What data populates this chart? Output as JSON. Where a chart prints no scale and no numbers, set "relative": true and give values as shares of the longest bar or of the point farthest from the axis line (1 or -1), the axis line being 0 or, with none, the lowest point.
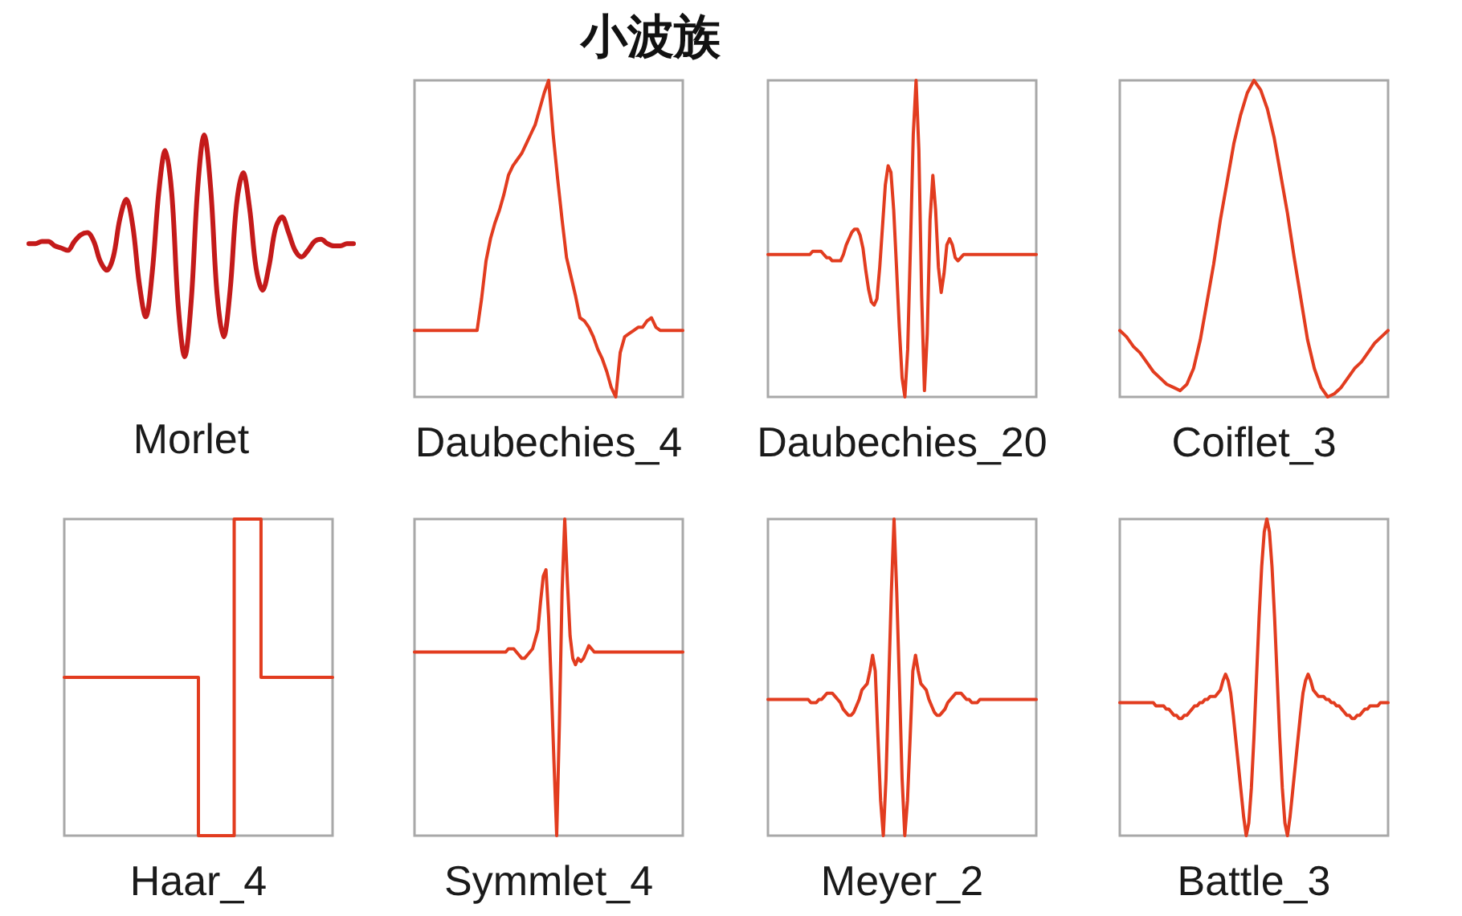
{
  "chart_data": [
    {
      "type": "line",
      "xlabel": "Morlet",
      "relative": true,
      "color": "#c41a1a",
      "categories": [
        null,
        null,
        null,
        null,
        null,
        null,
        null,
        null,
        null,
        null,
        null,
        null,
        null,
        null,
        null,
        null,
        null,
        null,
        null,
        null,
        null,
        null,
        null,
        null,
        null,
        null,
        null,
        null,
        null,
        null,
        null,
        null,
        null,
        null,
        null,
        null,
        null,
        null,
        null,
        null,
        null,
        null,
        null,
        null,
        null,
        null,
        null,
        null,
        null,
        null,
        null
      ],
      "values": [
        0.51,
        0.51,
        0.52,
        0.52,
        0.5,
        0.49,
        0.48,
        0.52,
        0.55,
        0.56,
        0.52,
        0.43,
        0.39,
        0.45,
        0.62,
        0.71,
        0.59,
        0.33,
        0.18,
        0.38,
        0.74,
        0.93,
        0.74,
        0.23,
        0,
        0.25,
        0.76,
        1,
        0.76,
        0.28,
        0.09,
        0.3,
        0.69,
        0.83,
        0.67,
        0.4,
        0.3,
        0.41,
        0.58,
        0.63,
        0.56,
        0.48,
        0.45,
        0.48,
        0.52,
        0.53,
        0.51,
        0.5,
        0.5,
        0.51,
        0.51
      ]
    },
    {
      "type": "line",
      "title": "小波族",
      "xlabel": "Daubechies_4",
      "relative": true,
      "color": "#e23c1f",
      "categories": [
        null,
        null,
        null,
        null,
        null,
        null,
        null,
        null,
        null,
        null,
        null,
        null,
        null,
        null,
        null,
        null,
        null,
        null,
        null,
        null,
        null,
        null,
        null,
        null,
        null,
        null,
        null,
        null,
        null,
        null,
        null,
        null,
        null,
        null,
        null,
        null,
        null,
        null,
        null,
        null,
        null,
        null,
        null,
        null,
        null,
        null,
        null,
        null,
        null,
        null,
        null,
        null,
        null,
        null,
        null,
        null,
        null,
        null,
        null,
        null,
        null
      ],
      "values": [
        0.21,
        0.21,
        0.21,
        0.21,
        0.21,
        0.21,
        0.21,
        0.21,
        0.21,
        0.21,
        0.21,
        0.21,
        0.21,
        0.21,
        0.21,
        0.31,
        0.43,
        0.5,
        0.55,
        0.59,
        0.64,
        0.7,
        0.73,
        0.75,
        0.77,
        0.8,
        0.83,
        0.86,
        0.91,
        0.96,
        1,
        0.83,
        0.69,
        0.56,
        0.44,
        0.38,
        0.32,
        0.25,
        0.24,
        0.22,
        0.19,
        0.15,
        0.12,
        0.08,
        0.03,
        0,
        0.14,
        0.19,
        0.2,
        0.21,
        0.22,
        0.22,
        0.24,
        0.25,
        0.22,
        0.21,
        0.21,
        0.21,
        0.21,
        0.21,
        0.21
      ]
    },
    {
      "type": "line",
      "xlabel": "Daubechies_20",
      "relative": true,
      "color": "#e23c1f",
      "categories": [
        null,
        null,
        null,
        null,
        null,
        null,
        null,
        null,
        null,
        null,
        null,
        null,
        null,
        null,
        null,
        null,
        null,
        null,
        null,
        null,
        null,
        null,
        null,
        null,
        null,
        null,
        null,
        null,
        null,
        null,
        null,
        null,
        null,
        null,
        null,
        null,
        null,
        null,
        null,
        null,
        null,
        null,
        null,
        null,
        null,
        null,
        null,
        null,
        null,
        null,
        null,
        null,
        null,
        null,
        null,
        null,
        null,
        null,
        null,
        null,
        null,
        null,
        null,
        null,
        null,
        null,
        null,
        null,
        null,
        null,
        null,
        null,
        null,
        null,
        null,
        null,
        null,
        null,
        null,
        null,
        null,
        null,
        null,
        null,
        null,
        null,
        null,
        null,
        null,
        null,
        null,
        null,
        null,
        null,
        null,
        null,
        null
      ],
      "values": [
        0.45,
        0.45,
        0.45,
        0.45,
        0.45,
        0.45,
        0.45,
        0.45,
        0.45,
        0.45,
        0.45,
        0.45,
        0.45,
        0.45,
        0.45,
        0.45,
        0.46,
        0.46,
        0.46,
        0.46,
        0.45,
        0.44,
        0.44,
        0.43,
        0.43,
        0.43,
        0.43,
        0.45,
        0.48,
        0.5,
        0.52,
        0.53,
        0.53,
        0.51,
        0.47,
        0.4,
        0.34,
        0.3,
        0.29,
        0.31,
        0.41,
        0.54,
        0.67,
        0.73,
        0.71,
        0.59,
        0.41,
        0.22,
        0.06,
        0,
        0.15,
        0.48,
        0.83,
        1,
        0.78,
        0.32,
        0.02,
        0.2,
        0.56,
        0.7,
        0.59,
        0.41,
        0.33,
        0.39,
        0.48,
        0.5,
        0.48,
        0.44,
        0.43,
        0.44,
        0.45,
        0.45,
        0.45,
        0.45,
        0.45,
        0.45,
        0.45,
        0.45,
        0.45,
        0.45,
        0.45,
        0.45,
        0.45,
        0.45,
        0.45,
        0.45,
        0.45,
        0.45,
        0.45,
        0.45,
        0.45,
        0.45,
        0.45,
        0.45,
        0.45,
        0.45,
        0.45
      ]
    },
    {
      "type": "line",
      "xlabel": "Coiflet_3",
      "relative": true,
      "color": "#e23c1f",
      "categories": [
        null,
        null,
        null,
        null,
        null,
        null,
        null,
        null,
        null,
        null,
        null,
        null,
        null,
        null,
        null,
        null,
        null,
        null,
        null,
        null,
        null,
        null,
        null,
        null,
        null,
        null,
        null,
        null,
        null,
        null,
        null,
        null,
        null,
        null,
        null,
        null,
        null,
        null,
        null,
        null,
        null
      ],
      "values": [
        0.21,
        0.19,
        0.16,
        0.14,
        0.11,
        0.08,
        0.06,
        0.04,
        0.03,
        0.02,
        0.04,
        0.09,
        0.18,
        0.3,
        0.42,
        0.56,
        0.68,
        0.8,
        0.89,
        0.96,
        1,
        0.97,
        0.91,
        0.82,
        0.7,
        0.58,
        0.44,
        0.31,
        0.18,
        0.09,
        0.03,
        0,
        0.01,
        0.03,
        0.06,
        0.09,
        0.11,
        0.14,
        0.17,
        0.19,
        0.21
      ]
    },
    {
      "type": "step",
      "xlabel": "Haar_4",
      "relative": true,
      "color": "#e23c1f",
      "categories": [
        null,
        null,
        null,
        null,
        null,
        null,
        null,
        null,
        null,
        null,
        null,
        null,
        null,
        null,
        null,
        null,
        null,
        null,
        null,
        null,
        null,
        null,
        null,
        null,
        null,
        null,
        null,
        null,
        null,
        null,
        null
      ],
      "values": [
        0.5,
        0.5,
        0.5,
        0.5,
        0.5,
        0.5,
        0.5,
        0.5,
        0.5,
        0.5,
        0.5,
        0.5,
        0.5,
        0.5,
        0.5,
        0,
        0,
        0,
        0,
        1,
        1,
        1,
        0.5,
        0.5,
        0.5,
        0.5,
        0.5,
        0.5,
        0.5,
        0.5,
        0.5
      ]
    },
    {
      "type": "line",
      "xlabel": "Symmlet_4",
      "relative": true,
      "color": "#e23c1f",
      "categories": [
        null,
        null,
        null,
        null,
        null,
        null,
        null,
        null,
        null,
        null,
        null,
        null,
        null,
        null,
        null,
        null,
        null,
        null,
        null,
        null,
        null,
        null,
        null,
        null,
        null,
        null,
        null,
        null,
        null,
        null,
        null,
        null,
        null,
        null,
        null,
        null,
        null,
        null,
        null,
        null,
        null,
        null,
        null,
        null,
        null,
        null,
        null,
        null,
        null,
        null,
        null,
        null,
        null,
        null,
        null,
        null,
        null,
        null,
        null,
        null,
        null,
        null,
        null,
        null,
        null,
        null,
        null,
        null,
        null,
        null,
        null,
        null,
        null,
        null,
        null,
        null,
        null,
        null,
        null,
        null,
        null,
        null,
        null,
        null,
        null,
        null,
        null,
        null,
        null,
        null,
        null,
        null,
        null,
        null,
        null,
        null,
        null,
        null,
        null,
        null,
        null
      ],
      "values": [
        0.58,
        0.58,
        0.58,
        0.58,
        0.58,
        0.58,
        0.58,
        0.58,
        0.58,
        0.58,
        0.58,
        0.58,
        0.58,
        0.58,
        0.58,
        0.58,
        0.58,
        0.58,
        0.58,
        0.58,
        0.58,
        0.58,
        0.58,
        0.58,
        0.58,
        0.58,
        0.58,
        0.58,
        0.58,
        0.58,
        0.58,
        0.58,
        0.58,
        0.58,
        0.58,
        0.59,
        0.59,
        0.59,
        0.58,
        0.57,
        0.56,
        0.56,
        0.57,
        0.58,
        0.59,
        0.62,
        0.65,
        0.74,
        0.82,
        0.84,
        0.69,
        0.47,
        0.23,
        0,
        0.35,
        0.77,
        1,
        0.8,
        0.63,
        0.56,
        0.54,
        0.56,
        0.55,
        0.56,
        0.58,
        0.6,
        0.59,
        0.58,
        0.58,
        0.58,
        0.58,
        0.58,
        0.58,
        0.58,
        0.58,
        0.58,
        0.58,
        0.58,
        0.58,
        0.58,
        0.58,
        0.58,
        0.58,
        0.58,
        0.58,
        0.58,
        0.58,
        0.58,
        0.58,
        0.58,
        0.58,
        0.58,
        0.58,
        0.58,
        0.58,
        0.58,
        0.58,
        0.58,
        0.58,
        0.58,
        0.58
      ]
    },
    {
      "type": "line",
      "xlabel": "Meyer_2",
      "relative": true,
      "color": "#e23c1f",
      "categories": [
        null,
        null,
        null,
        null,
        null,
        null,
        null,
        null,
        null,
        null,
        null,
        null,
        null,
        null,
        null,
        null,
        null,
        null,
        null,
        null,
        null,
        null,
        null,
        null,
        null,
        null,
        null,
        null,
        null,
        null,
        null,
        null,
        null,
        null,
        null,
        null,
        null,
        null,
        null,
        null,
        null,
        null,
        null,
        null,
        null,
        null,
        null,
        null,
        null,
        null,
        null,
        null,
        null,
        null,
        null,
        null,
        null,
        null,
        null,
        null,
        null,
        null,
        null,
        null,
        null,
        null,
        null,
        null,
        null,
        null,
        null,
        null,
        null,
        null,
        null,
        null,
        null,
        null,
        null,
        null,
        null,
        null,
        null,
        null,
        null,
        null,
        null,
        null,
        null,
        null,
        null,
        null,
        null,
        null,
        null,
        null,
        null,
        null,
        null,
        null,
        null
      ],
      "values": [
        0.43,
        0.43,
        0.43,
        0.43,
        0.43,
        0.43,
        0.43,
        0.43,
        0.43,
        0.43,
        0.43,
        0.43,
        0.43,
        0.43,
        0.43,
        0.43,
        0.42,
        0.42,
        0.42,
        0.43,
        0.43,
        0.44,
        0.45,
        0.45,
        0.45,
        0.44,
        0.43,
        0.42,
        0.4,
        0.39,
        0.38,
        0.38,
        0.39,
        0.41,
        0.43,
        0.46,
        0.47,
        0.48,
        0.52,
        0.57,
        0.52,
        0.31,
        0.11,
        0,
        0.18,
        0.48,
        0.77,
        1,
        0.77,
        0.48,
        0.18,
        0,
        0.11,
        0.31,
        0.52,
        0.57,
        0.52,
        0.48,
        0.47,
        0.46,
        0.43,
        0.41,
        0.39,
        0.38,
        0.38,
        0.39,
        0.4,
        0.42,
        0.43,
        0.44,
        0.45,
        0.45,
        0.45,
        0.44,
        0.43,
        0.43,
        0.42,
        0.42,
        0.42,
        0.43,
        0.43,
        0.43,
        0.43,
        0.43,
        0.43,
        0.43,
        0.43,
        0.43,
        0.43,
        0.43,
        0.43,
        0.43,
        0.43,
        0.43,
        0.43,
        0.43,
        0.43,
        0.43,
        0.43,
        0.43,
        0.43
      ]
    },
    {
      "type": "line",
      "xlabel": "Battle_3",
      "relative": true,
      "color": "#e23c1f",
      "categories": [
        null,
        null,
        null,
        null,
        null,
        null,
        null,
        null,
        null,
        null,
        null,
        null,
        null,
        null,
        null,
        null,
        null,
        null,
        null,
        null,
        null,
        null,
        null,
        null,
        null,
        null,
        null,
        null,
        null,
        null,
        null,
        null,
        null,
        null,
        null,
        null,
        null,
        null,
        null,
        null,
        null,
        null,
        null,
        null,
        null,
        null,
        null,
        null,
        null,
        null,
        null,
        null,
        null,
        null,
        null,
        null,
        null,
        null,
        null,
        null,
        null,
        null,
        null,
        null,
        null,
        null,
        null,
        null,
        null,
        null,
        null,
        null,
        null,
        null,
        null,
        null,
        null,
        null,
        null,
        null,
        null,
        null,
        null,
        null,
        null,
        null,
        null,
        null,
        null,
        null,
        null,
        null,
        null,
        null,
        null,
        null,
        null,
        null,
        null,
        null,
        null,
        null,
        null,
        null,
        null
      ],
      "values": [
        0.42,
        0.42,
        0.42,
        0.42,
        0.42,
        0.42,
        0.42,
        0.42,
        0.42,
        0.42,
        0.42,
        0.42,
        0.42,
        0.42,
        0.41,
        0.41,
        0.41,
        0.41,
        0.4,
        0.4,
        0.39,
        0.38,
        0.38,
        0.37,
        0.37,
        0.38,
        0.38,
        0.39,
        0.4,
        0.41,
        0.41,
        0.42,
        0.42,
        0.43,
        0.43,
        0.44,
        0.44,
        0.44,
        0.45,
        0.46,
        0.49,
        0.51,
        0.49,
        0.45,
        0.38,
        0.3,
        0.22,
        0.14,
        0.06,
        0,
        0.04,
        0.15,
        0.31,
        0.5,
        0.69,
        0.85,
        0.96,
        1,
        0.96,
        0.85,
        0.69,
        0.5,
        0.31,
        0.15,
        0.04,
        0,
        0.06,
        0.14,
        0.22,
        0.3,
        0.38,
        0.45,
        0.49,
        0.51,
        0.49,
        0.46,
        0.45,
        0.44,
        0.44,
        0.44,
        0.43,
        0.43,
        0.42,
        0.42,
        0.41,
        0.41,
        0.4,
        0.39,
        0.38,
        0.38,
        0.37,
        0.37,
        0.38,
        0.38,
        0.39,
        0.4,
        0.4,
        0.41,
        0.41,
        0.41,
        0.41,
        0.42,
        0.42,
        0.42,
        0.42
      ]
    }
  ]
}
